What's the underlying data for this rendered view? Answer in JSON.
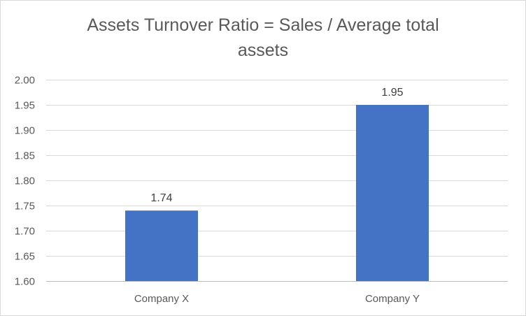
{
  "chart_data": {
    "type": "bar",
    "title_lines": [
      "Assets Turnover Ratio = Sales / Average total",
      "assets"
    ],
    "categories": [
      "Company X",
      "Company Y"
    ],
    "values": [
      1.74,
      1.95
    ],
    "data_labels": [
      "1.74",
      "1.95"
    ],
    "ylim": [
      1.6,
      2.0
    ],
    "y_ticks": [
      1.6,
      1.65,
      1.7,
      1.75,
      1.8,
      1.85,
      1.9,
      1.95,
      2.0
    ],
    "y_tick_labels": [
      "1.60",
      "1.65",
      "1.70",
      "1.75",
      "1.80",
      "1.85",
      "1.90",
      "1.95",
      "2.00"
    ],
    "grid": true,
    "legend": "none",
    "bar_color": "#4472c4",
    "gridline_color": "#d9d9d9",
    "axis_color": "#bfbfbf"
  }
}
